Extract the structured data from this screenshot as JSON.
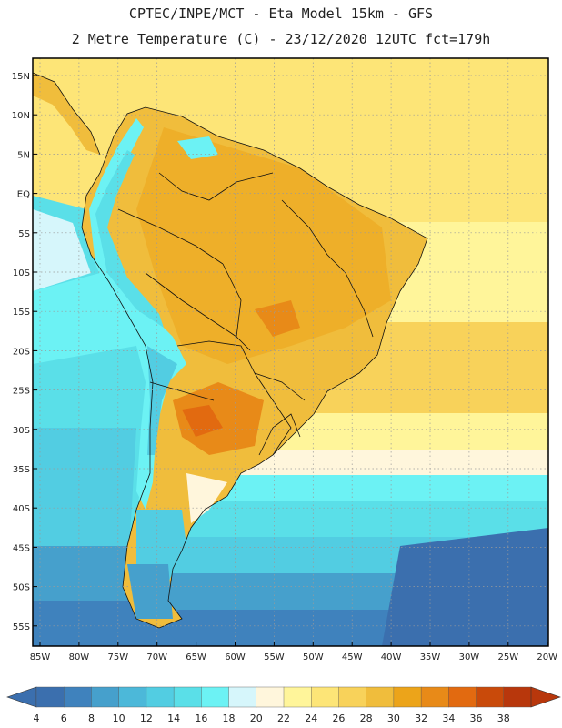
{
  "title_line1": "CPTEC/INPE/MCT -  Eta Model 15km - GFS",
  "title_line2": "2 Metre Temperature (C) - 23/12/2020 12UTC fct=179h",
  "lat_labels": [
    "15N",
    "10N",
    "5N",
    "EQ",
    "5S",
    "10S",
    "15S",
    "20S",
    "25S",
    "30S",
    "35S",
    "40S",
    "45S",
    "50S",
    "55S"
  ],
  "lon_labels": [
    "85W",
    "80W",
    "75W",
    "70W",
    "65W",
    "60W",
    "55W",
    "50W",
    "45W",
    "40W",
    "35W",
    "30W",
    "25W",
    "20W"
  ],
  "colorbar": {
    "labels": [
      "4",
      "6",
      "8",
      "10",
      "12",
      "14",
      "16",
      "18",
      "20",
      "22",
      "24",
      "26",
      "28",
      "30",
      "32",
      "34",
      "36",
      "38"
    ],
    "colors": [
      "#3b6fae",
      "#3f82bd",
      "#46a0cc",
      "#4cb8d9",
      "#52cde2",
      "#5adfe8",
      "#6cf2f4",
      "#d6f6fb",
      "#fff6dc",
      "#fff59a",
      "#fde577",
      "#f8d25a",
      "#f0bd3c",
      "#eca41a",
      "#e88a18",
      "#e26a10",
      "#c94a0a",
      "#b8370c"
    ]
  }
}
